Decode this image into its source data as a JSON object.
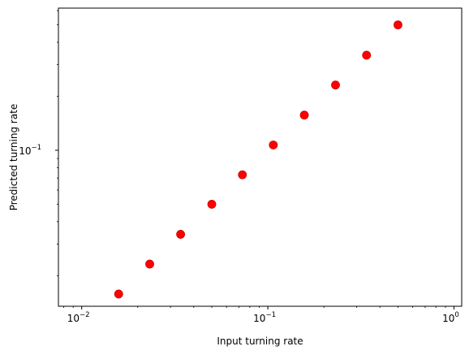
{
  "chart_data": {
    "type": "scatter",
    "title": "",
    "xlabel": "Input turning rate",
    "ylabel": "Predicted turning rate",
    "xscale": "log",
    "yscale": "log",
    "xlim": [
      0.0075,
      1.1
    ],
    "ylim": [
      0.0135,
      0.62
    ],
    "grid": false,
    "marker_color": "#ff0000",
    "points": [
      {
        "x": 0.0158,
        "y": 0.0158
      },
      {
        "x": 0.0232,
        "y": 0.0232
      },
      {
        "x": 0.034,
        "y": 0.034
      },
      {
        "x": 0.05,
        "y": 0.05
      },
      {
        "x": 0.073,
        "y": 0.073
      },
      {
        "x": 0.107,
        "y": 0.107
      },
      {
        "x": 0.157,
        "y": 0.157
      },
      {
        "x": 0.231,
        "y": 0.231
      },
      {
        "x": 0.339,
        "y": 0.339
      },
      {
        "x": 0.5,
        "y": 0.5
      }
    ],
    "x_ticks": [
      {
        "value": 0.01,
        "base": "10",
        "exp": "−2"
      },
      {
        "value": 0.1,
        "base": "10",
        "exp": "−1"
      },
      {
        "value": 1,
        "base": "10",
        "exp": "0"
      }
    ],
    "y_ticks": [
      {
        "value": 0.1,
        "base": "10",
        "exp": "−1"
      }
    ]
  }
}
